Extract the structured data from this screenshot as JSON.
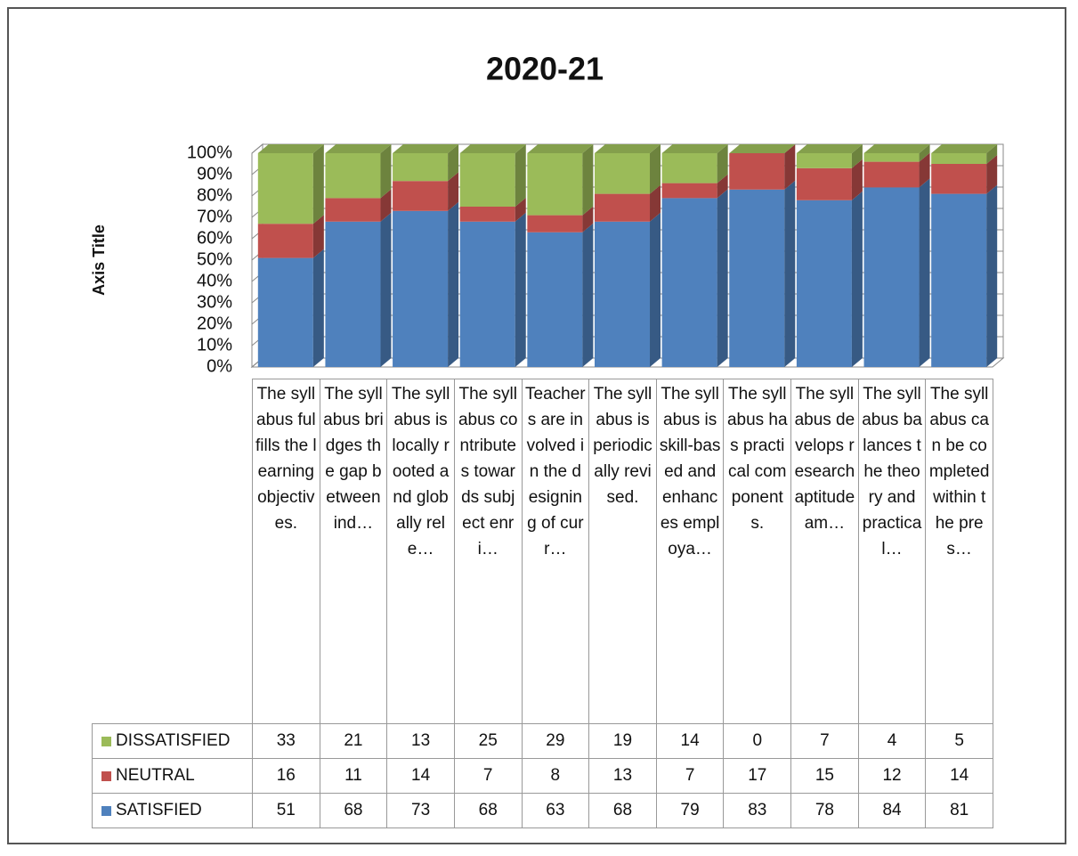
{
  "chart_data": {
    "type": "bar3d_stacked_percent",
    "title": "2020-21",
    "y_axis_title": "Axis Title",
    "categories": [
      "The syllabus fulfills the learning objectives.",
      "The syllabus bridges the gap between ind…",
      "The syllabus is locally rooted and globally rele…",
      "The syllabus contributes towards subject enri…",
      "Teachers are involved in the designing of curr…",
      "The syllabus is periodically revised.",
      "The syllabus is skill-based and enhances employa…",
      "The syllabus has practical components.",
      "The syllabus develops research aptitude am…",
      "The syllabus balances the theory and practical…",
      "The syllabus can be completed within the pres…"
    ],
    "series": [
      {
        "name": "DISSATISFIED",
        "color": "#9bbb59",
        "values": [
          33,
          21,
          13,
          25,
          29,
          19,
          14,
          0,
          7,
          4,
          5
        ]
      },
      {
        "name": "NEUTRAL",
        "color": "#c0504d",
        "values": [
          16,
          11,
          14,
          7,
          8,
          13,
          7,
          17,
          15,
          12,
          14
        ]
      },
      {
        "name": "SATISFIED",
        "color": "#4f81bd",
        "values": [
          51,
          68,
          73,
          68,
          63,
          68,
          79,
          83,
          78,
          84,
          81
        ]
      }
    ],
    "ylim": [
      0,
      100
    ],
    "yticks": [
      {
        "value": 0,
        "label": "0%"
      },
      {
        "value": 10,
        "label": "10%"
      },
      {
        "value": 20,
        "label": "20%"
      },
      {
        "value": 30,
        "label": "30%"
      },
      {
        "value": 40,
        "label": "40%"
      },
      {
        "value": 50,
        "label": "50%"
      },
      {
        "value": 60,
        "label": "60%"
      },
      {
        "value": 70,
        "label": "70%"
      },
      {
        "value": 80,
        "label": "80%"
      },
      {
        "value": 90,
        "label": "90%"
      },
      {
        "value": 100,
        "label": "100%"
      }
    ],
    "grid": true
  }
}
